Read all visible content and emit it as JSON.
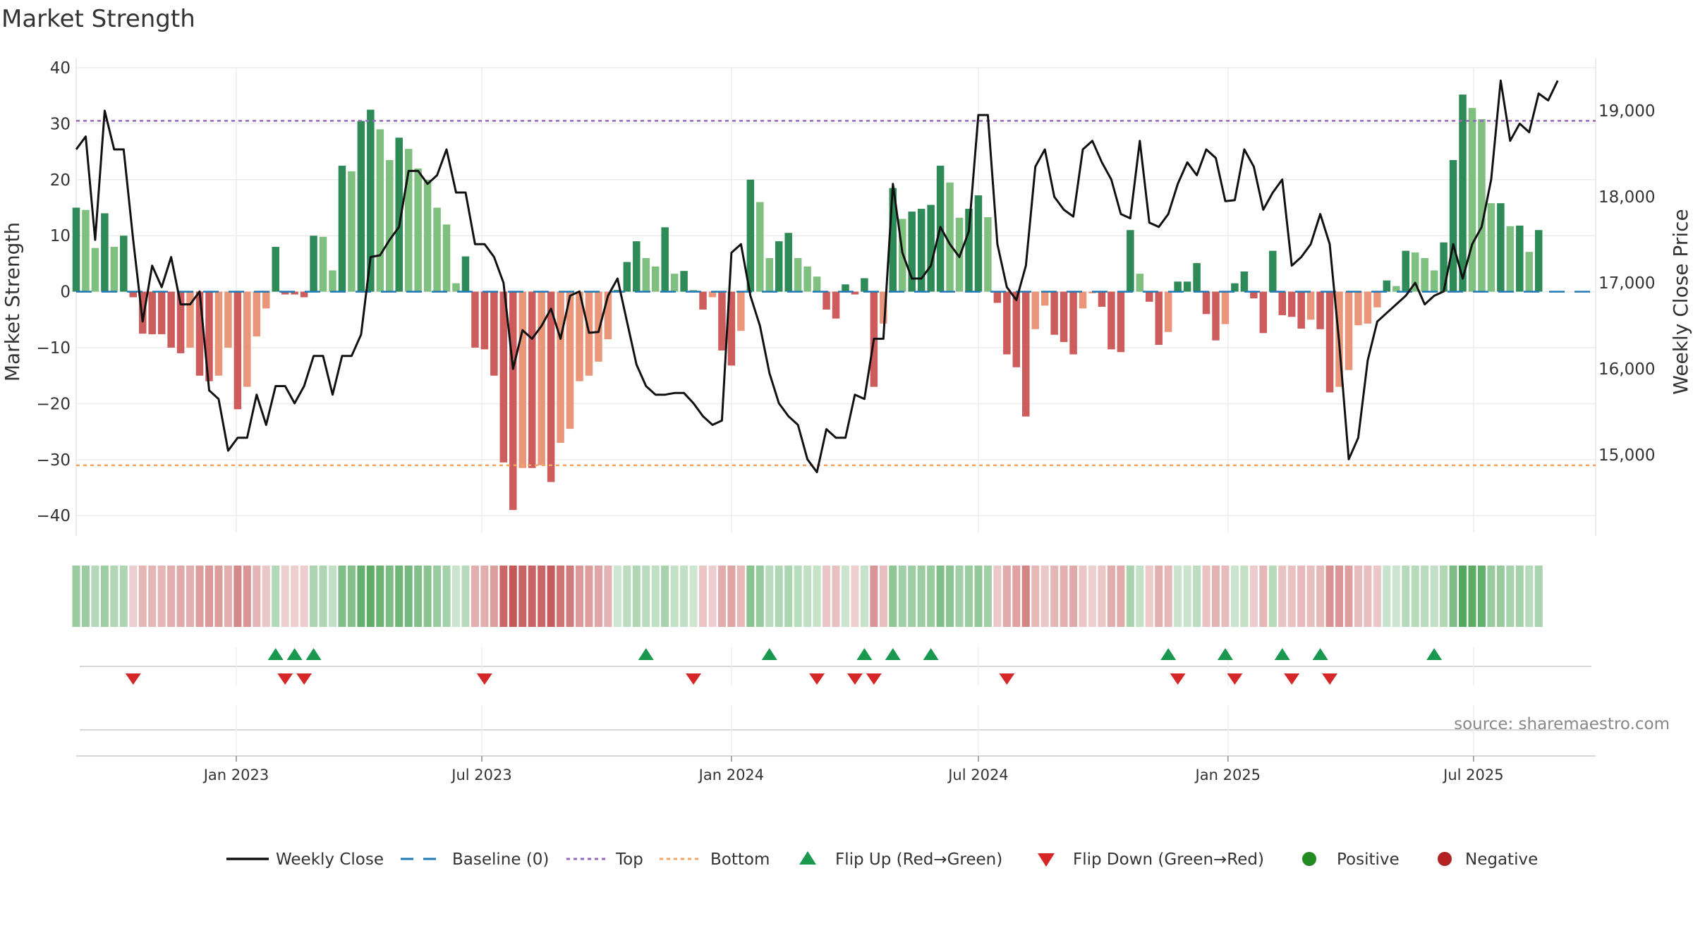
{
  "chart_data": {
    "type": "bar",
    "title": "Market Strength",
    "source": "source: sharemaestro.com",
    "left_axis": {
      "label": "Market Strength",
      "ylim": [
        -43,
        40
      ],
      "ticks": [
        40,
        30,
        20,
        10,
        0,
        -10,
        -20,
        -30,
        -40
      ],
      "tick_labels": [
        "40",
        "30",
        "20",
        "10",
        "0",
        "−10",
        "−20",
        "−30",
        "−40"
      ]
    },
    "right_axis": {
      "label": "Weekly Close Price",
      "ylim": [
        14100,
        19500
      ],
      "ticks": [
        19000,
        18000,
        17000,
        16000,
        15000
      ],
      "tick_labels": [
        "19,000",
        "18,000",
        "17,000",
        "16,000",
        "15,000"
      ]
    },
    "x_axis": {
      "range": [
        "2022-09-05",
        "2025-09-29"
      ],
      "ticks": [
        "2023-01-01",
        "2023-07-01",
        "2024-01-01",
        "2024-07-01",
        "2025-01-01",
        "2025-07-01"
      ],
      "tick_labels": [
        "Jan 2023",
        "Jul 2023",
        "Jan 2024",
        "Jul 2024",
        "Jan 2025",
        "Jul 2025"
      ]
    },
    "reference_lines": {
      "top": 30.5,
      "bottom": -31,
      "baseline": 0
    },
    "start_week": "2022-09-05",
    "strength": [
      15,
      14.6,
      7.8,
      14,
      8,
      10,
      -1,
      -7.5,
      -7.6,
      -7.6,
      -10,
      -11,
      -10,
      -15,
      -16,
      -15,
      -10,
      -21,
      -17,
      -8,
      -3,
      8,
      -0.5,
      -0.5,
      -1,
      10,
      9.8,
      3.8,
      22.5,
      21.5,
      30.5,
      32.5,
      29,
      23.5,
      27.5,
      25.5,
      22,
      20,
      15,
      12,
      1.5,
      6.3,
      -10,
      -10.3,
      -15,
      -30.5,
      -39,
      -31.5,
      -31.5,
      -31,
      -34,
      -27,
      -24.5,
      -16,
      -15,
      -12.5,
      -8.5,
      0.3,
      5.3,
      9,
      6,
      4.5,
      11.5,
      3.2,
      3.7,
      0.3,
      -3.2,
      -1,
      -10.5,
      -13.2,
      -7,
      20,
      16,
      6,
      9,
      10.5,
      6,
      4.5,
      2.7,
      -3.2,
      -4.8,
      1.3,
      -0.5,
      2.4,
      -17,
      -5.7,
      18.5,
      13,
      14.3,
      14.8,
      15.5,
      22.5,
      19.5,
      13.2,
      14.8,
      17.2,
      13.3,
      -2,
      -11.2,
      -13.5,
      -22.3,
      -6.7,
      -2.5,
      -7.7,
      -9,
      -11.2,
      -3,
      -0.3,
      -2.7,
      -10.3,
      -10.8,
      11,
      3.2,
      -1.8,
      -9.5,
      -7.2,
      1.8,
      1.8,
      5.1,
      -4,
      -8.7,
      -5.8,
      1.5,
      3.6,
      -1.2,
      -7.4,
      7.3,
      -4.2,
      -4.5,
      -6.6,
      -5,
      -6.7,
      -18,
      -17,
      -14,
      -6,
      -5.7,
      -2.8,
      2,
      1,
      7.3,
      7,
      6,
      3.8,
      8.8,
      23.5,
      35.2,
      32.8,
      30.8,
      15.8,
      15.8,
      11.7,
      11.8,
      7.1,
      11
    ],
    "weekly_close": [
      18550,
      18700,
      17500,
      19000,
      18550,
      18550,
      17500,
      16550,
      17200,
      16950,
      17300,
      16750,
      16750,
      16900,
      15750,
      15650,
      15050,
      15200,
      15200,
      15700,
      15350,
      15800,
      15800,
      15600,
      15800,
      16150,
      16150,
      15700,
      16150,
      16150,
      16400,
      17300,
      17320,
      17500,
      17650,
      18300,
      18300,
      18150,
      18250,
      18550,
      18050,
      18050,
      17450,
      17450,
      17300,
      17000,
      16000,
      16450,
      16350,
      16500,
      16700,
      16350,
      16850,
      16900,
      16420,
      16430,
      16850,
      17050,
      16550,
      16050,
      15800,
      15700,
      15700,
      15720,
      15720,
      15600,
      15450,
      15350,
      15400,
      17350,
      17450,
      16850,
      16500,
      15950,
      15600,
      15450,
      15350,
      14950,
      14800,
      15300,
      15200,
      15200,
      15700,
      15650,
      16350,
      16350,
      18150,
      17350,
      17050,
      17050,
      17200,
      17650,
      17450,
      17300,
      17600,
      18950,
      18950,
      17450,
      16950,
      16800,
      17200,
      18350,
      18550,
      18000,
      17850,
      17770,
      18550,
      18650,
      18400,
      18200,
      17800,
      17750,
      18650,
      17700,
      17650,
      17800,
      18150,
      18400,
      18250,
      18550,
      18450,
      17950,
      17960,
      18550,
      18350,
      17850,
      18050,
      18200,
      17200,
      17300,
      17450,
      17800,
      17450,
      16300,
      14950,
      15200,
      16100,
      16550,
      16650,
      16750,
      16850,
      17000,
      16750,
      16850,
      16900,
      17450,
      17050,
      17450,
      17650,
      18200,
      19350,
      18650,
      18850,
      18750,
      19200,
      19120,
      19350
    ],
    "flip_up": [
      "2023-01-30",
      "2023-02-13",
      "2023-02-27",
      "2023-10-30",
      "2024-01-29",
      "2024-04-08",
      "2024-04-29",
      "2024-05-27",
      "2024-11-18",
      "2024-12-30",
      "2025-02-10",
      "2025-03-10",
      "2025-06-02"
    ],
    "flip_down": [
      "2022-10-17",
      "2023-02-06",
      "2023-02-20",
      "2023-07-03",
      "2023-12-04",
      "2024-03-04",
      "2024-04-01",
      "2024-04-15",
      "2024-07-22",
      "2024-11-25",
      "2025-01-06",
      "2025-02-17",
      "2025-03-17"
    ],
    "legend": [
      {
        "label": "Weekly Close",
        "kind": "line"
      },
      {
        "label": "Baseline (0)",
        "kind": "dash"
      },
      {
        "label": "Top",
        "kind": "dot-purple"
      },
      {
        "label": "Bottom",
        "kind": "dot-orange"
      },
      {
        "label": "Flip Up (Red→Green)",
        "kind": "tri-up"
      },
      {
        "label": "Flip Down (Green→Red)",
        "kind": "tri-down"
      },
      {
        "label": "Positive",
        "kind": "circle-green"
      },
      {
        "label": "Negative",
        "kind": "circle-red"
      }
    ],
    "colors": {
      "positive_strong": "#2e8b57",
      "positive_weak": "#7fbf7f",
      "negative_strong": "#cd5c5c",
      "negative_weak": "#e9967a",
      "close_line": "#111111",
      "baseline": "#1f77b4",
      "top": "#9467bd",
      "bottom": "#f4a460",
      "flip_up": "#1a9850",
      "flip_down": "#d62728",
      "positive_marker": "#228b22",
      "negative_marker": "#b22222"
    }
  }
}
